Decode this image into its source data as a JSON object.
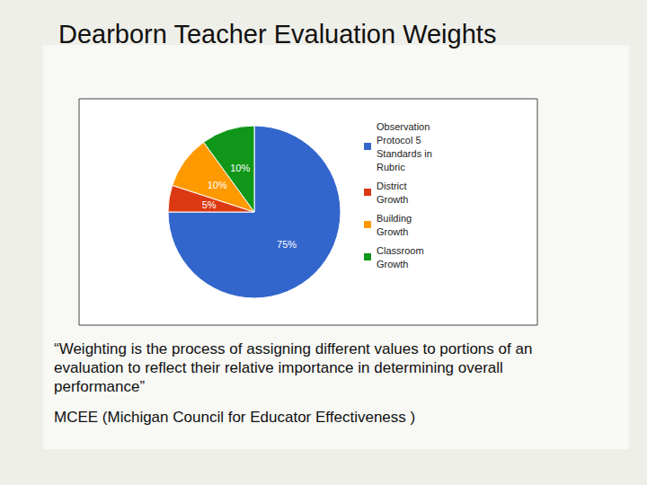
{
  "chart_data": {
    "type": "pie",
    "title": "Dearborn Teacher Evaluation Weights",
    "categories": [
      "Observation Protocol 5 Standards in Rubric",
      "District Growth",
      "Building Growth",
      "Classroom Growth"
    ],
    "values": [
      75,
      5,
      10,
      10
    ],
    "value_labels": [
      "75%",
      "5%",
      "10%",
      "10%"
    ],
    "colors": [
      "#3366cc",
      "#dc3912",
      "#ff9900",
      "#109618"
    ],
    "data_labels": true,
    "legend": "top-right",
    "annotations": [
      "“Weighting is the process of assigning different values to portions of an evaluation to reflect their relative importance in determining overall performance”",
      "MCEE (Michigan Council for Educator Effectiveness )"
    ]
  }
}
